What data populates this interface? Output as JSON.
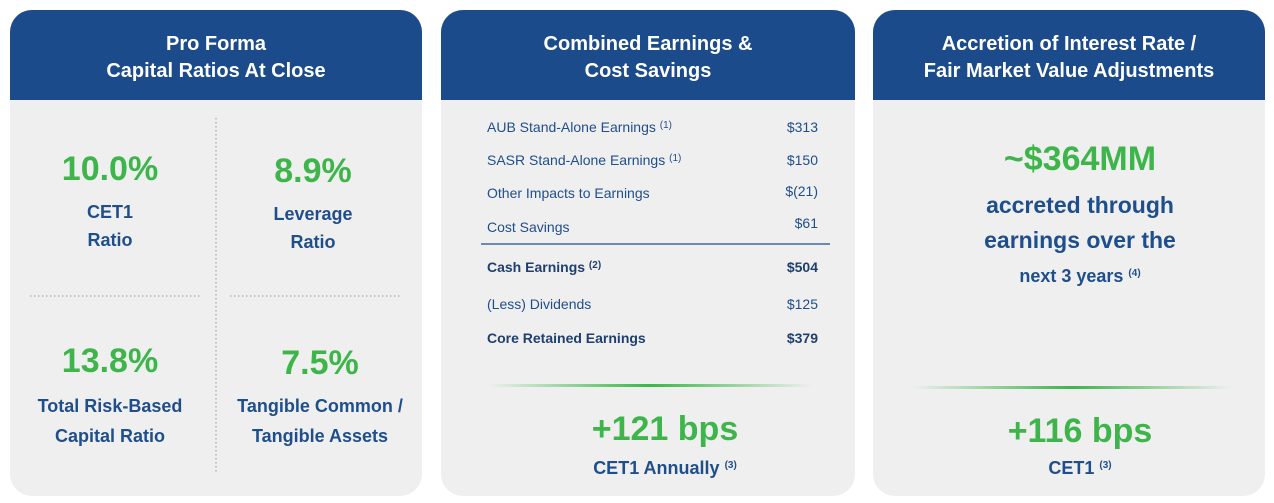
{
  "capital_ratios": {
    "title_lines": [
      "Pro Forma",
      "Capital Ratios At Close"
    ],
    "metrics": [
      {
        "value": "10.0%",
        "label_lines": [
          "CET1",
          "Ratio"
        ]
      },
      {
        "value": "8.9%",
        "label_lines": [
          "Leverage",
          "Ratio"
        ]
      },
      {
        "value": "13.8%",
        "label_lines": [
          "Total Risk-Based",
          "Capital Ratio"
        ]
      },
      {
        "value": "7.5%",
        "label_lines": [
          "Tangible Common /",
          "Tangible Assets"
        ]
      }
    ]
  },
  "earnings": {
    "title_lines": [
      "Combined Earnings &",
      "Cost Savings"
    ],
    "rows": [
      {
        "label": "AUB Stand-Alone Earnings",
        "note": "(1)",
        "value": "$313"
      },
      {
        "label": "SASR Stand-Alone Earnings",
        "note": "(1)",
        "value": "$150"
      },
      {
        "label": "Other Impacts to Earnings",
        "value": "$(21)"
      },
      {
        "label": "Cost Savings",
        "value": "$61"
      },
      {
        "label": "Cash Earnings",
        "note": "(2)",
        "value": "$504"
      },
      {
        "label": "(Less) Dividends",
        "value": "$125"
      },
      {
        "label": "Core Retained Earnings",
        "value": "$379"
      }
    ],
    "result": {
      "value": "+121 bps",
      "label": "CET1 Annually",
      "note": "(3)"
    }
  },
  "accretion": {
    "title_lines": [
      "Accretion of Interest Rate /",
      "Fair Market Value Adjustments"
    ],
    "amount": "~$364MM",
    "text_lines": [
      "accreted through",
      "earnings over the",
      "next 3 years"
    ],
    "text_note": "(4)",
    "result": {
      "value": "+116 bps",
      "label": "CET1",
      "note": "(3)"
    }
  }
}
